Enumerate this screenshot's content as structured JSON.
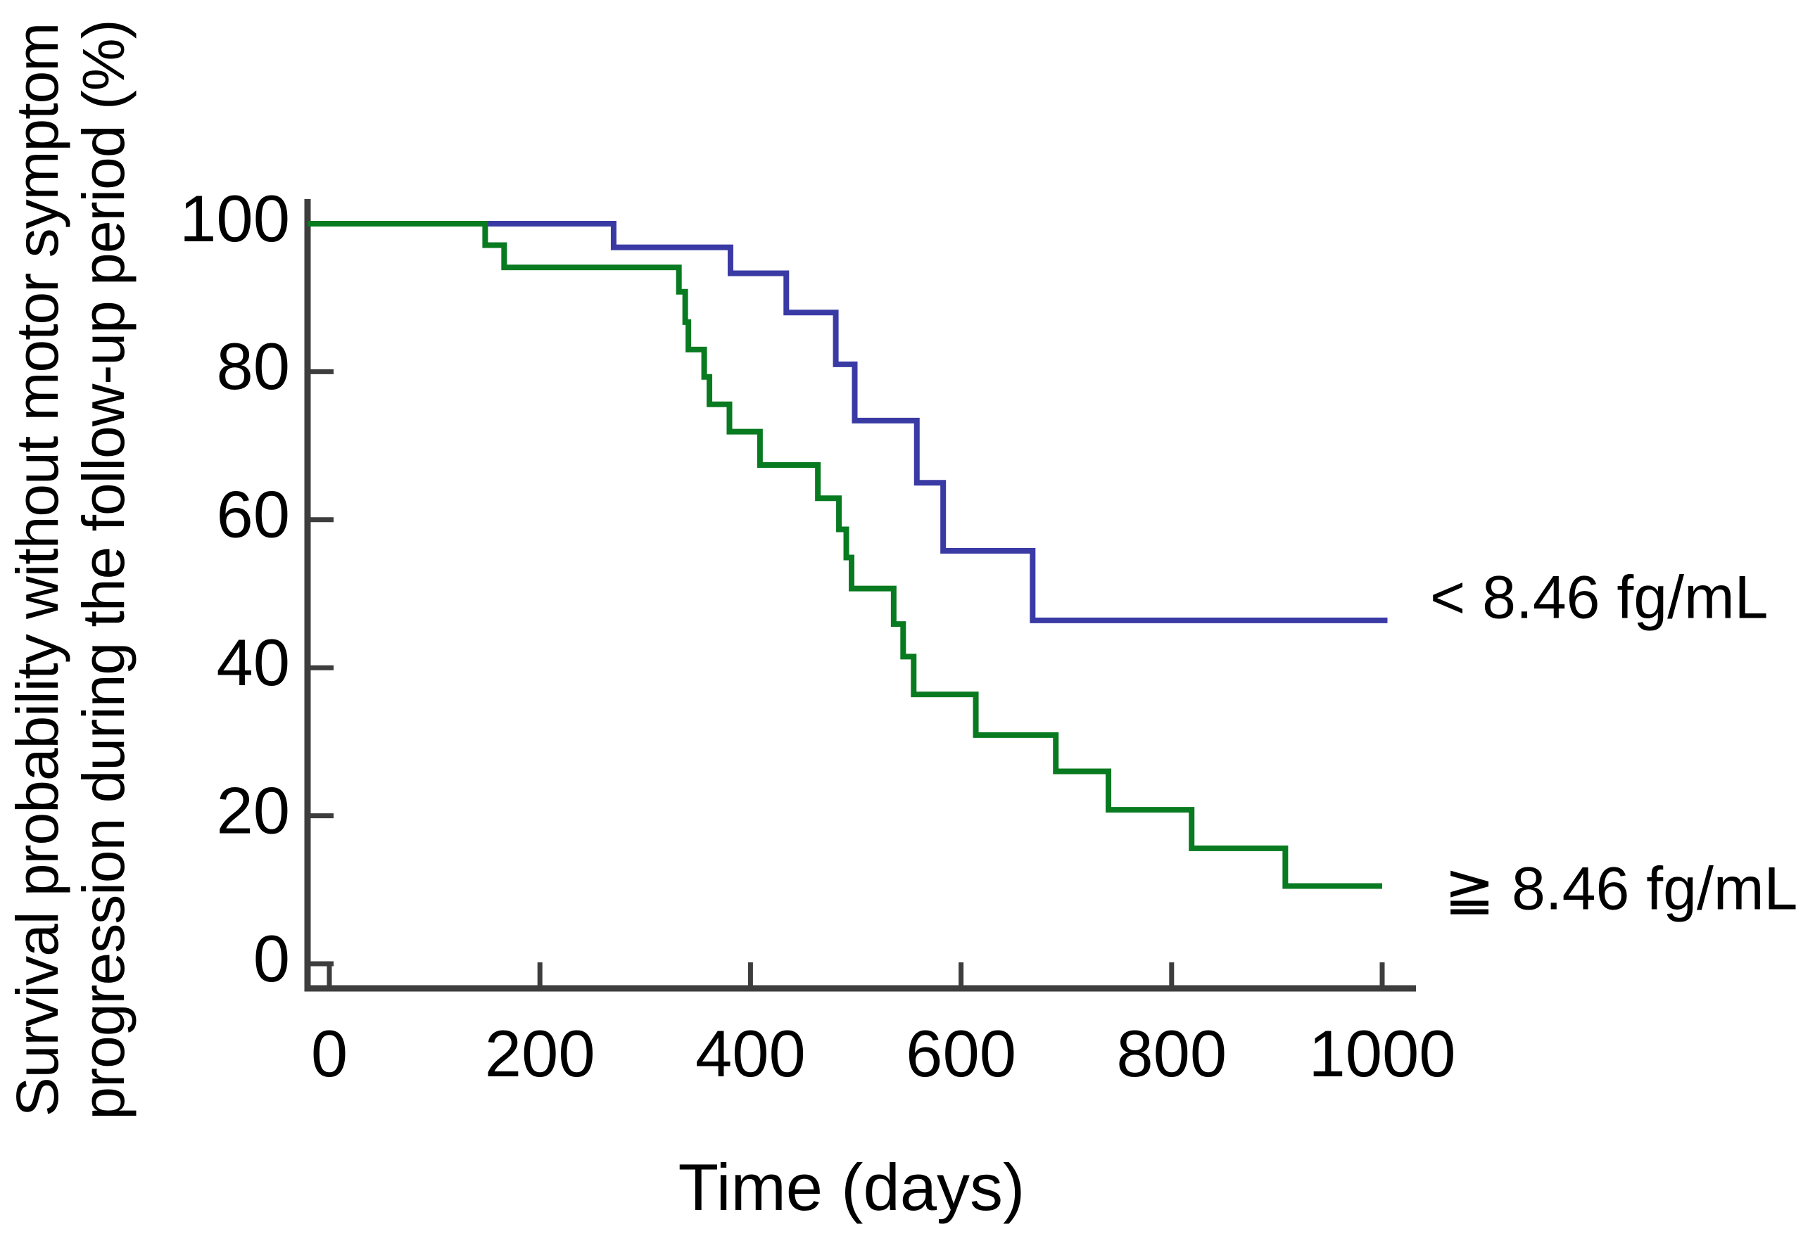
{
  "figure": {
    "y_axis_title_line1": "Survival probability without motor symptom",
    "y_axis_title_line2": "progression during the follow-up period (%)",
    "x_axis_title": "Time (days)",
    "background_color": "#ffffff",
    "text_color": "#000000",
    "axis_color": "#3d3d3d"
  },
  "chart_data": {
    "type": "line",
    "subtype": "kaplan_meier_step",
    "title": "",
    "xlabel": "Time (days)",
    "ylabel": "Survival probability without motor symptom progression during the follow-up period (%)",
    "xlim": [
      0,
      1050
    ],
    "ylim": [
      0,
      100
    ],
    "x_ticks": [
      0,
      200,
      400,
      600,
      800,
      1000
    ],
    "y_ticks": [
      100,
      80,
      60,
      40,
      20,
      0
    ],
    "grid": false,
    "legend_position": "right of curve ends",
    "series": [
      {
        "id": "lt-8-46",
        "name": "< 8.46 fg/mL",
        "color": "#3A3AA5",
        "start_value": 100,
        "end_day": 1005,
        "steps": [
          [
            270,
            96.8
          ],
          [
            381,
            93.3
          ],
          [
            434,
            88.0
          ],
          [
            481,
            81.0
          ],
          [
            499,
            73.4
          ],
          [
            558,
            65.0
          ],
          [
            583,
            55.8
          ],
          [
            668,
            46.4
          ]
        ]
      },
      {
        "id": "gte-8-46",
        "name": "≧ 8.46 fg/mL",
        "color": "#087A20",
        "start_value": 100,
        "end_day": 1000,
        "steps": [
          [
            148,
            97.1
          ],
          [
            166,
            94.1
          ],
          [
            332,
            90.8
          ],
          [
            338,
            86.7
          ],
          [
            341,
            83.0
          ],
          [
            356,
            79.3
          ],
          [
            361,
            75.6
          ],
          [
            380,
            71.9
          ],
          [
            409,
            67.4
          ],
          [
            464,
            62.9
          ],
          [
            484,
            58.7
          ],
          [
            491,
            54.9
          ],
          [
            496,
            50.7
          ],
          [
            536,
            45.9
          ],
          [
            545,
            41.5
          ],
          [
            555,
            36.4
          ],
          [
            614,
            30.9
          ],
          [
            690,
            26.0
          ],
          [
            740,
            20.8
          ],
          [
            819,
            15.6
          ],
          [
            908,
            10.5
          ]
        ]
      }
    ]
  }
}
